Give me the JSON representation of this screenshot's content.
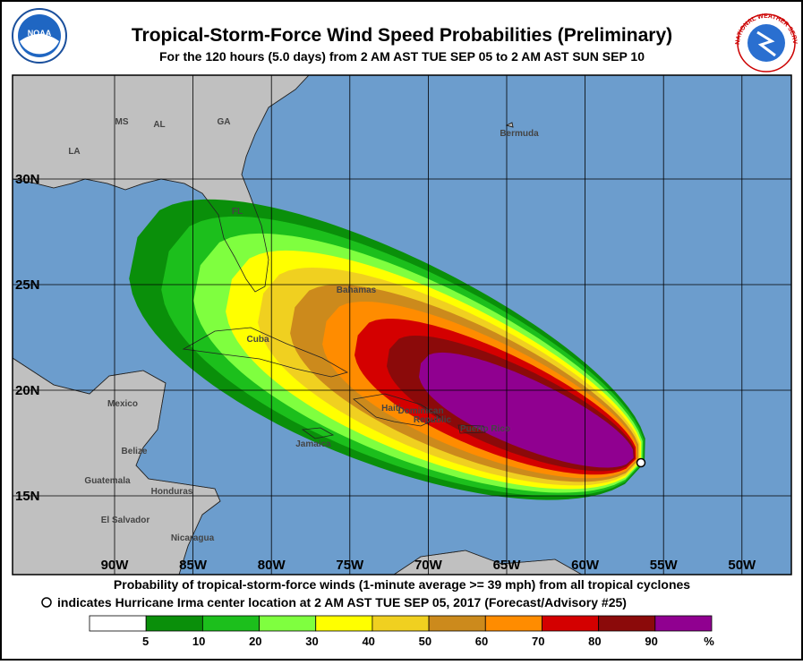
{
  "header": {
    "title": "Tropical-Storm-Force Wind Speed Probabilities (Preliminary)",
    "subtitle": "For the 120 hours (5.0 days) from 2 AM AST TUE SEP 05 to 2 AM AST SUN SEP 10",
    "noaa_logo": "NOAA",
    "nws_logo": "NATIONAL WEATHER SERVICE"
  },
  "map": {
    "longitude_labels": [
      "90W",
      "85W",
      "80W",
      "75W",
      "70W",
      "65W",
      "60W",
      "55W",
      "50W"
    ],
    "latitude_labels": [
      "30N",
      "25N",
      "20N",
      "15N"
    ],
    "place_labels": [
      "MS",
      "AL",
      "GA",
      "LA",
      "FL",
      "Bermuda",
      "Bahamas",
      "Cuba",
      "Mexico",
      "Haiti",
      "Dominican",
      "Republic",
      "Puerto Rico",
      "Jamaica",
      "Belize",
      "Guatemala",
      "Honduras",
      "El Salvador",
      "Nicaragua"
    ]
  },
  "caption": {
    "line1": "Probability of tropical-storm-force winds (1-minute average >= 39 mph) from all tropical cyclones",
    "line2": "indicates Hurricane Irma center location at 2 AM AST TUE SEP 05, 2017 (Forecast/Advisory #25)"
  },
  "legend": {
    "labels": [
      5,
      10,
      20,
      30,
      40,
      50,
      60,
      70,
      80,
      90
    ],
    "unit": "%",
    "colors": [
      "#ffffff",
      "#0a8f0a",
      "#1cbf1c",
      "#7fff3f",
      "#ffff00",
      "#f0d020",
      "#cc8a1c",
      "#ff8c00",
      "#d40000",
      "#8b0a0a",
      "#900090"
    ]
  }
}
